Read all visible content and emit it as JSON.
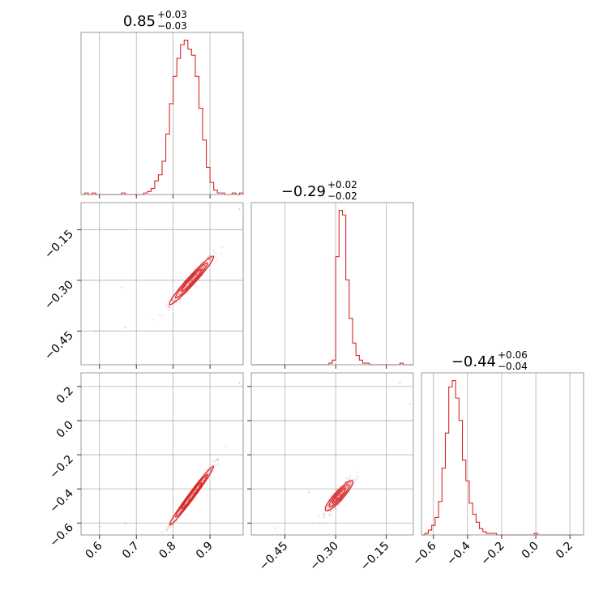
{
  "chart_data": {
    "type": "scatter",
    "subtype": "corner-plot",
    "grid": true,
    "colors": {
      "series": "#d62728",
      "grid": "#b0b0b0",
      "frame": "#808080"
    },
    "parameters": [
      {
        "index": 0,
        "median": "0.85",
        "plus": "+0.03",
        "minus": "−0.03",
        "range": [
          0.55,
          0.99
        ]
      },
      {
        "index": 1,
        "median": "−0.29",
        "plus": "+0.02",
        "minus": "−0.02",
        "range": [
          -0.55,
          -0.07
        ]
      },
      {
        "index": 2,
        "median": "−0.44",
        "plus": "+0.06",
        "minus": "−0.04",
        "range": [
          -0.67,
          0.28
        ]
      }
    ],
    "ticks": {
      "p0": [
        {
          "v": 0.6,
          "label": "0.6"
        },
        {
          "v": 0.7,
          "label": "0.7"
        },
        {
          "v": 0.8,
          "label": "0.8"
        },
        {
          "v": 0.9,
          "label": "0.9"
        }
      ],
      "p1": [
        {
          "v": -0.45,
          "label": "−0.45"
        },
        {
          "v": -0.3,
          "label": "−0.30"
        },
        {
          "v": -0.15,
          "label": "−0.15"
        }
      ],
      "p2": [
        {
          "v": -0.6,
          "label": "−0.6"
        },
        {
          "v": -0.4,
          "label": "−0.4"
        },
        {
          "v": -0.2,
          "label": "−0.2"
        },
        {
          "v": 0.0,
          "label": "0.0"
        },
        {
          "v": 0.2,
          "label": "0.2"
        }
      ]
    },
    "histograms": [
      {
        "param": 0,
        "edges": [
          0.55,
          0.56,
          0.57,
          0.58,
          0.59,
          0.6,
          0.61,
          0.62,
          0.63,
          0.64,
          0.65,
          0.66,
          0.67,
          0.68,
          0.69,
          0.7,
          0.71,
          0.72,
          0.73,
          0.74,
          0.75,
          0.76,
          0.77,
          0.78,
          0.79,
          0.8,
          0.81,
          0.82,
          0.83,
          0.84,
          0.85,
          0.86,
          0.87,
          0.88,
          0.89,
          0.9,
          0.91,
          0.92,
          0.93,
          0.94,
          0.95,
          0.96,
          0.97,
          0.98,
          0.99
        ],
        "counts": [
          0,
          1,
          0,
          1,
          0,
          0,
          0,
          0,
          0,
          0,
          0,
          1,
          0,
          0,
          0,
          0,
          0,
          1,
          2,
          4,
          9,
          13,
          22,
          40,
          60,
          78,
          90,
          99,
          102,
          96,
          92,
          78,
          57,
          36,
          18,
          8,
          3,
          1,
          1,
          0,
          0,
          1,
          0,
          1
        ]
      },
      {
        "param": 1,
        "edges": [
          -0.55,
          -0.54,
          -0.53,
          -0.52,
          -0.51,
          -0.5,
          -0.49,
          -0.48,
          -0.47,
          -0.46,
          -0.45,
          -0.44,
          -0.43,
          -0.42,
          -0.41,
          -0.4,
          -0.39,
          -0.38,
          -0.37,
          -0.36,
          -0.35,
          -0.34,
          -0.33,
          -0.32,
          -0.31,
          -0.3,
          -0.29,
          -0.28,
          -0.27,
          -0.26,
          -0.25,
          -0.24,
          -0.23,
          -0.22,
          -0.21,
          -0.2,
          -0.19,
          -0.18,
          -0.17,
          -0.16,
          -0.15,
          -0.14,
          -0.13,
          -0.12,
          -0.11,
          -0.1,
          -0.09,
          -0.08,
          -0.07
        ],
        "counts": [
          0,
          0,
          0,
          0,
          0,
          0,
          0,
          0,
          0,
          0,
          0,
          0,
          0,
          0,
          0,
          0,
          0,
          0,
          0,
          0,
          0,
          0,
          0,
          1,
          3,
          70,
          100,
          97,
          55,
          30,
          14,
          6,
          3,
          1,
          1,
          0,
          0,
          0,
          0,
          0,
          0,
          0,
          0,
          0,
          1,
          0,
          0,
          0
        ]
      },
      {
        "param": 2,
        "edges": [
          -0.67,
          -0.65,
          -0.63,
          -0.61,
          -0.59,
          -0.57,
          -0.55,
          -0.53,
          -0.51,
          -0.49,
          -0.47,
          -0.45,
          -0.43,
          -0.41,
          -0.39,
          -0.37,
          -0.35,
          -0.33,
          -0.31,
          -0.29,
          -0.27,
          -0.25,
          -0.23,
          -0.21,
          -0.19,
          -0.17,
          -0.15,
          -0.13,
          -0.11,
          -0.09,
          -0.07,
          -0.05,
          -0.03,
          -0.01,
          0.01,
          0.03,
          0.05,
          0.07,
          0.09,
          0.11,
          0.13,
          0.15,
          0.17,
          0.19,
          0.21,
          0.23,
          0.25,
          0.27
        ],
        "counts": [
          0,
          1,
          3,
          6,
          11,
          21,
          42,
          64,
          93,
          97,
          86,
          72,
          47,
          34,
          20,
          13,
          8,
          4,
          2,
          1,
          1,
          1,
          0,
          0,
          0,
          0,
          0,
          0,
          0,
          0,
          0,
          0,
          0,
          1,
          0,
          0,
          0,
          0,
          0,
          0,
          0,
          0,
          0,
          0,
          0,
          0,
          0
        ]
      }
    ],
    "pairs": [
      {
        "x": 0,
        "y": 1,
        "slope": 1.2,
        "intercept": -1.32,
        "sx": 0.03,
        "sy": 0.009,
        "contours": [
          1.0,
          1.6,
          2.2
        ],
        "outliers": [
          [
            0.67,
            -0.44
          ],
          [
            0.59,
            -0.45
          ],
          [
            0.98,
            -0.09
          ],
          [
            0.66,
            -0.32
          ]
        ]
      },
      {
        "x": 0,
        "y": 2,
        "slope": 2.9,
        "intercept": -2.905,
        "sx": 0.03,
        "sy": 0.015,
        "contours": [
          1.0,
          1.6,
          2.2
        ],
        "outliers": [
          [
            0.67,
            -0.6
          ],
          [
            0.6,
            -0.62
          ],
          [
            0.98,
            0.22
          ],
          [
            0.99,
            -0.03
          ]
        ]
      },
      {
        "x": 1,
        "y": 2,
        "slope": 2.2,
        "intercept": 0.198,
        "sx": 0.02,
        "sy": 0.02,
        "contours": [
          1.0,
          1.6,
          2.2
        ],
        "outliers": [
          [
            -0.48,
            -0.63
          ],
          [
            -0.11,
            0.22
          ],
          [
            -0.08,
            0.1
          ],
          [
            -0.38,
            -0.42
          ]
        ]
      }
    ]
  }
}
